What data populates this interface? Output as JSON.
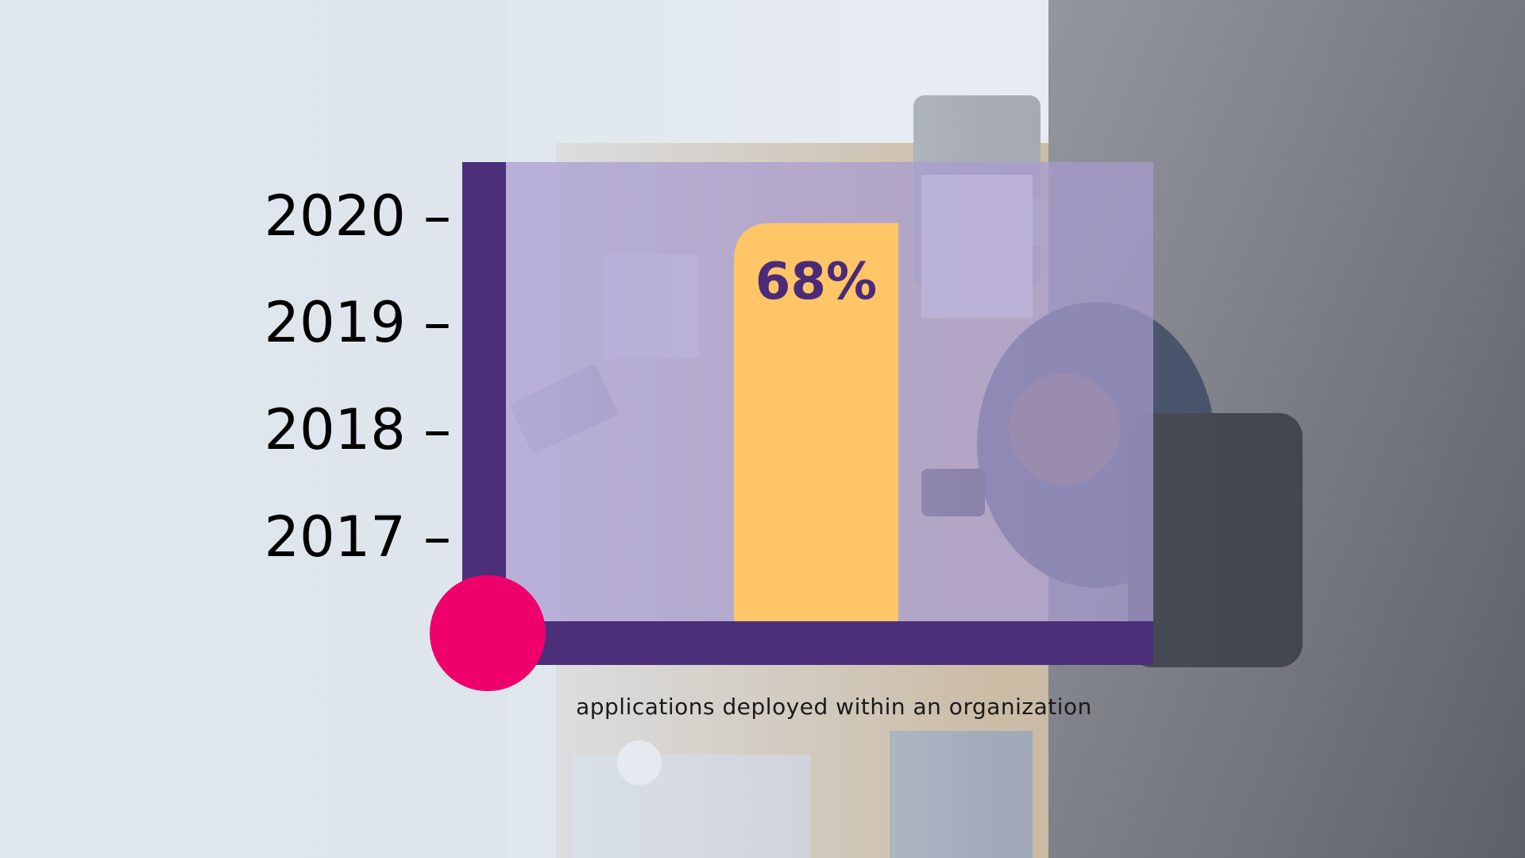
{
  "chart_data": {
    "type": "bar",
    "categories": [
      ""
    ],
    "values": [
      68
    ],
    "value_label": "68%",
    "y_ticks": [
      "2017 –",
      "2018 –",
      "2019 –",
      "2020 –"
    ],
    "caption": "applications deployed within an organization",
    "ylim": [
      0,
      100
    ],
    "grid": false,
    "colors": {
      "bar": "#ffc566",
      "axis": "#4b2f7a",
      "panel": "#a79bd0",
      "dot": "#f0006a",
      "label": "#4b2a78"
    }
  }
}
